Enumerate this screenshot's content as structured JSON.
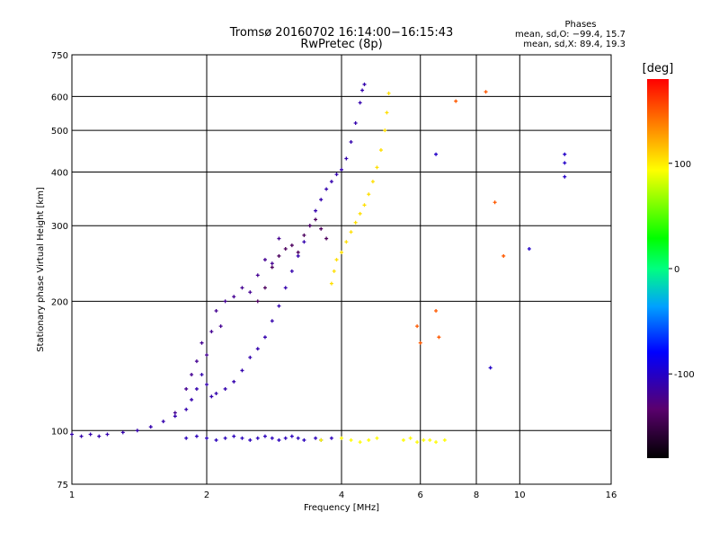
{
  "chart_data": {
    "type": "scatter",
    "title_line1": "Tromsø 20160702 16:14:00−16:15:43",
    "title_line2": "RwPretec (8p)",
    "stats": {
      "header": "Phases",
      "line_o": "mean, sd,O: −99.4, 15.7",
      "line_x": "mean, sd,X:  89.4, 19.3"
    },
    "xlabel": "Frequency [MHz]",
    "ylabel": "Stationary phase Virtual Height [km]",
    "x_scale": "log",
    "y_scale": "log",
    "xlim": [
      1,
      16
    ],
    "ylim": [
      75,
      750
    ],
    "x_ticks": [
      1,
      2,
      4,
      6,
      8,
      10,
      16
    ],
    "y_ticks": [
      75,
      100,
      200,
      300,
      400,
      500,
      600,
      750
    ],
    "grid": true,
    "colorbar": {
      "label": "[deg]",
      "min": -180,
      "max": 180,
      "ticks": [
        100,
        0,
        -100
      ]
    },
    "series": [
      {
        "phase_deg": -110,
        "x": [
          1.0,
          1.05,
          1.1,
          1.15,
          1.2,
          1.3,
          1.4,
          1.5,
          1.6,
          1.7,
          1.8,
          1.85,
          1.9,
          1.95,
          2.0,
          2.05,
          2.1,
          2.2,
          2.3,
          2.4,
          2.5,
          2.6,
          2.7,
          2.8,
          2.9,
          3.0,
          3.1,
          3.2,
          3.3,
          3.4,
          3.5,
          3.6,
          3.7,
          3.8,
          3.9,
          4.0,
          4.1,
          4.2,
          4.3,
          4.4,
          4.45,
          4.5
        ],
        "y": [
          98,
          97,
          98,
          97,
          98,
          99,
          100,
          102,
          105,
          108,
          112,
          118,
          125,
          135,
          128,
          120,
          122,
          125,
          130,
          138,
          148,
          155,
          165,
          180,
          195,
          215,
          235,
          255,
          275,
          300,
          325,
          345,
          365,
          380,
          395,
          405,
          430,
          470,
          520,
          580,
          620,
          640
        ]
      },
      {
        "phase_deg": -120,
        "x": [
          1.7,
          1.8,
          1.85,
          1.9,
          1.95,
          2.0,
          2.05,
          2.1,
          2.15,
          2.2,
          2.3,
          2.4,
          2.5,
          2.6,
          2.7,
          2.8,
          2.9
        ],
        "y": [
          110,
          125,
          135,
          145,
          160,
          150,
          170,
          190,
          175,
          200,
          205,
          215,
          210,
          230,
          250,
          245,
          280
        ]
      },
      {
        "phase_deg": -140,
        "x": [
          2.6,
          2.7,
          2.8,
          2.9,
          3.0,
          3.1,
          3.2,
          3.3,
          3.4,
          3.5,
          3.6,
          3.7
        ],
        "y": [
          200,
          215,
          240,
          255,
          265,
          270,
          260,
          285,
          300,
          310,
          295,
          280
        ]
      },
      {
        "phase_deg": 105,
        "x": [
          3.8,
          3.85,
          3.9,
          4.0,
          4.1,
          4.2,
          4.3,
          4.4,
          4.5,
          4.6,
          4.7,
          4.8,
          4.9,
          5.0,
          5.05,
          5.1
        ],
        "y": [
          220,
          235,
          250,
          260,
          275,
          290,
          305,
          320,
          335,
          355,
          380,
          410,
          450,
          500,
          550,
          610
        ]
      },
      {
        "phase_deg": -105,
        "x": [
          1.8,
          1.9,
          2.0,
          2.1,
          2.2,
          2.3,
          2.4,
          2.5,
          2.6,
          2.7,
          2.8,
          2.9,
          3.0,
          3.1,
          3.2,
          3.3,
          3.5,
          3.6,
          3.8
        ],
        "y": [
          96,
          97,
          96,
          95,
          96,
          97,
          96,
          95,
          96,
          97,
          96,
          95,
          96,
          97,
          96,
          95,
          96,
          95,
          96
        ]
      },
      {
        "phase_deg": 95,
        "x": [
          3.6,
          4.0,
          4.2,
          4.4,
          4.6,
          4.8,
          5.5,
          5.7,
          5.9,
          6.1,
          6.3,
          6.5,
          6.8
        ],
        "y": [
          95,
          96,
          95,
          94,
          95,
          96,
          95,
          96,
          94,
          95,
          95,
          94,
          95
        ]
      },
      {
        "phase_deg": -100,
        "x": [
          6.5,
          8.6,
          12.6,
          12.6,
          12.6,
          10.5
        ],
        "y": [
          440,
          140,
          440,
          420,
          390,
          265
        ]
      },
      {
        "phase_deg": 150,
        "x": [
          7.2,
          8.4,
          6.5,
          6.6,
          5.9,
          6.0,
          8.8,
          9.2
        ],
        "y": [
          585,
          615,
          190,
          165,
          175,
          160,
          340,
          255
        ]
      }
    ]
  }
}
